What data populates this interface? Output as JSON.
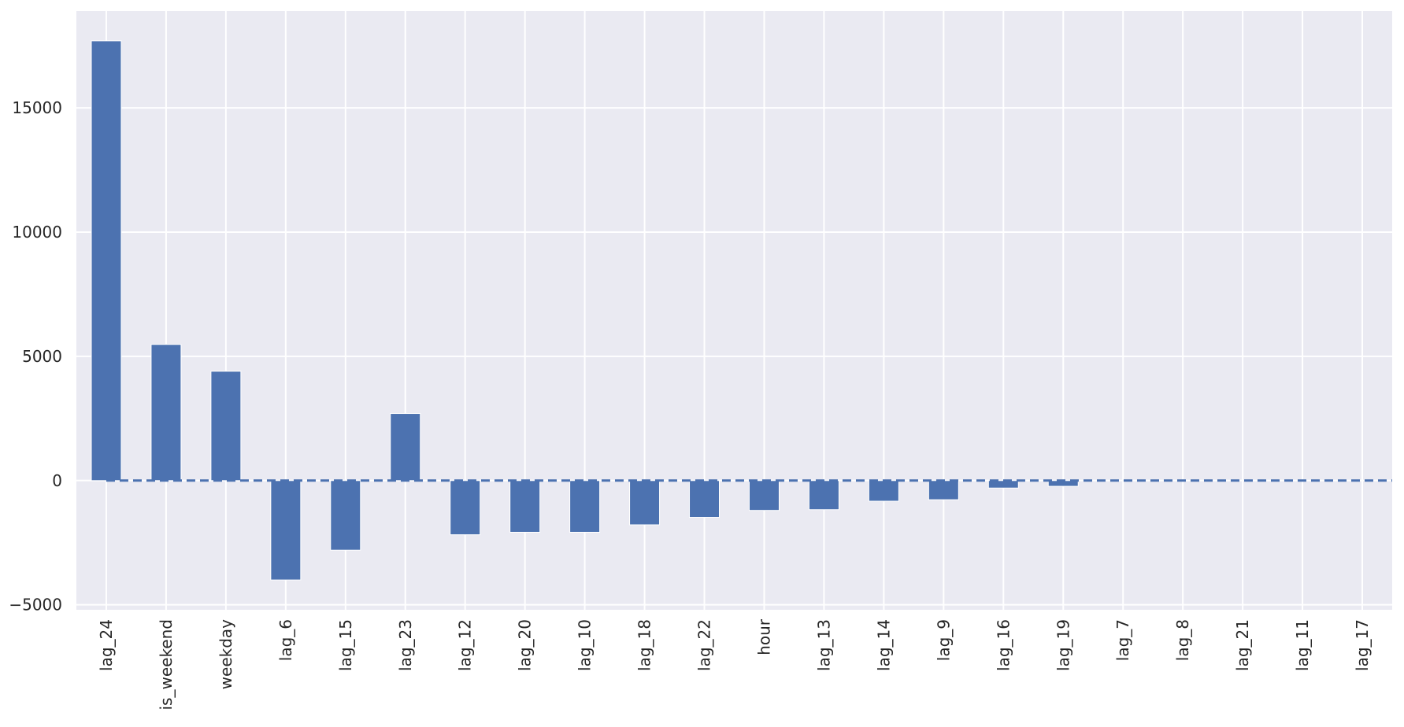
{
  "chart_data": {
    "type": "bar",
    "categories": [
      "lag_24",
      "is_weekend",
      "weekday",
      "lag_6",
      "lag_15",
      "lag_23",
      "lag_12",
      "lag_20",
      "lag_10",
      "lag_18",
      "lag_22",
      "hour",
      "lag_13",
      "lag_14",
      "lag_9",
      "lag_16",
      "lag_19",
      "lag_7",
      "lag_8",
      "lag_21",
      "lag_11",
      "lag_17"
    ],
    "values": [
      17700,
      5480,
      4400,
      -4000,
      -2800,
      2700,
      -2180,
      -2080,
      -2080,
      -1780,
      -1480,
      -1200,
      -1170,
      -830,
      -770,
      -300,
      -230,
      0,
      0,
      0,
      0,
      0
    ],
    "yticks": [
      -5000,
      0,
      5000,
      10000,
      15000
    ],
    "ylim": [
      -5200,
      18900
    ],
    "reference_line": 0,
    "grid": true,
    "legend": "none",
    "colors": {
      "bar": "#4c72b0",
      "background": "#eaeaf2",
      "grid": "#ffffff",
      "reference_line": "#4c72b0",
      "text": "#262626"
    }
  }
}
